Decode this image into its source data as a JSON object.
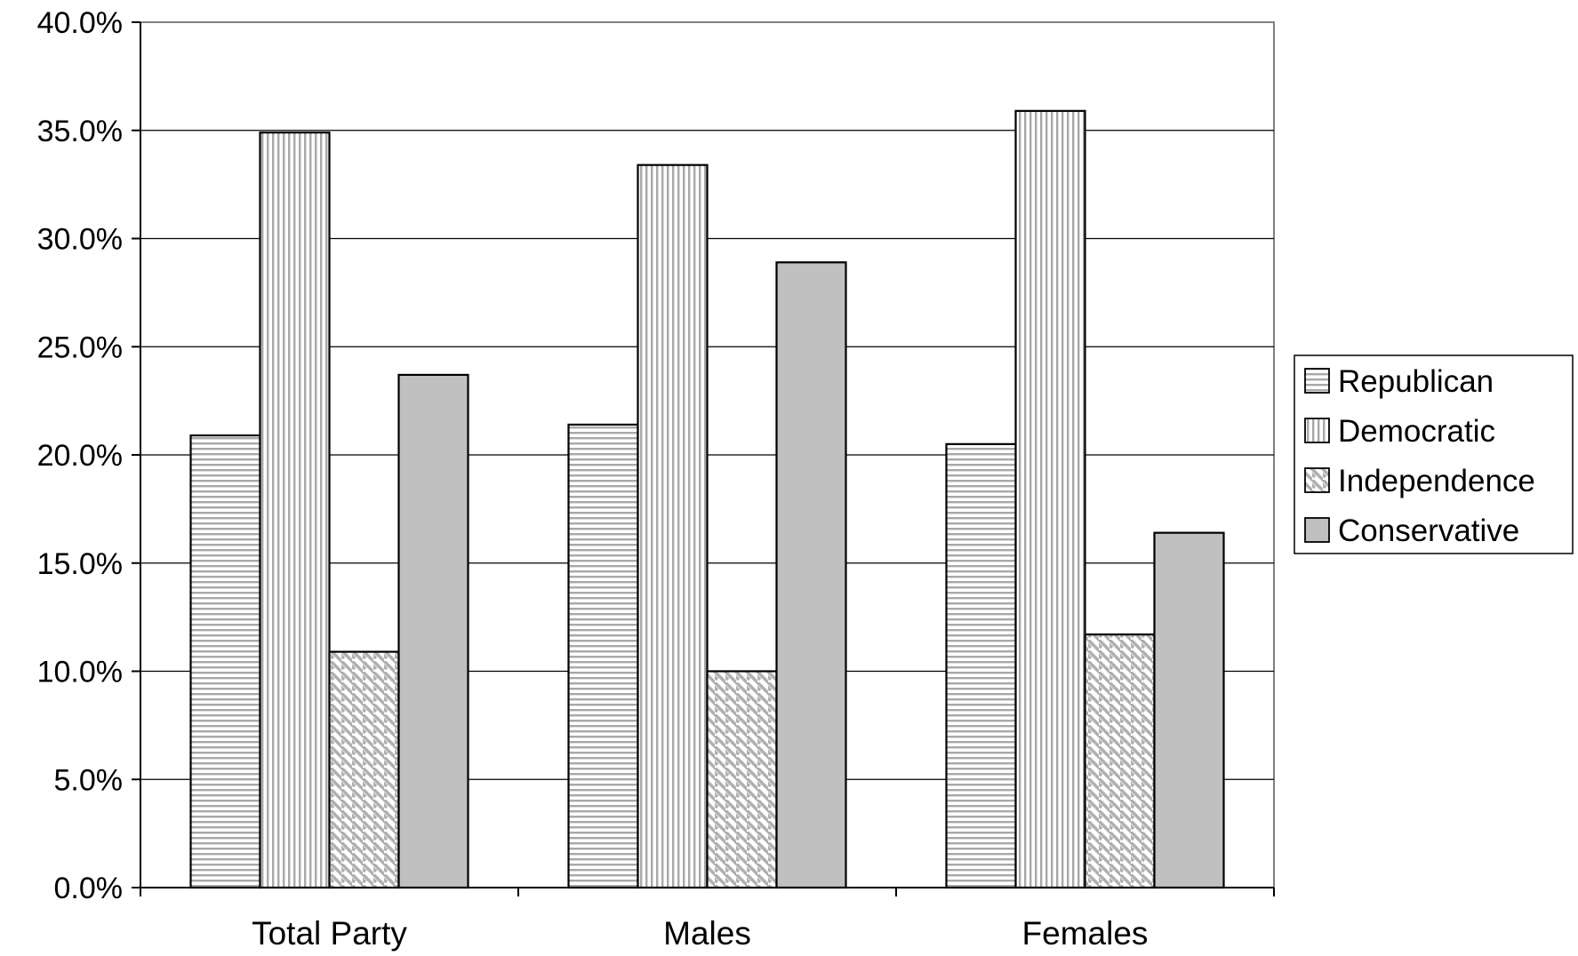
{
  "chart_data": {
    "type": "bar",
    "title": "",
    "xlabel": "",
    "ylabel": "",
    "categories": [
      "Total Party",
      "Males",
      "Females"
    ],
    "series": [
      {
        "name": "Republican",
        "values": [
          20.9,
          21.4,
          20.5
        ],
        "pattern": "horizontal-lines"
      },
      {
        "name": "Democratic",
        "values": [
          34.9,
          33.4,
          35.9
        ],
        "pattern": "vertical-lines"
      },
      {
        "name": "Independence",
        "values": [
          10.9,
          10.0,
          11.7
        ],
        "pattern": "diagonal-lines"
      },
      {
        "name": "Conservative",
        "values": [
          23.7,
          28.9,
          16.4
        ],
        "pattern": "solid"
      }
    ],
    "ylim": [
      0,
      40
    ],
    "yticks": [
      0,
      5,
      10,
      15,
      20,
      25,
      30,
      35,
      40
    ],
    "ytick_labels": [
      "0.0%",
      "5.0%",
      "10.0%",
      "15.0%",
      "20.0%",
      "25.0%",
      "30.0%",
      "35.0%",
      "40.0%"
    ],
    "grid": true,
    "legend_position": "right",
    "colors": {
      "bar_fill": "#c0c0c0",
      "pattern_stroke": "#a8a8a8",
      "outline": "#000000",
      "gridline": "#000000"
    }
  }
}
